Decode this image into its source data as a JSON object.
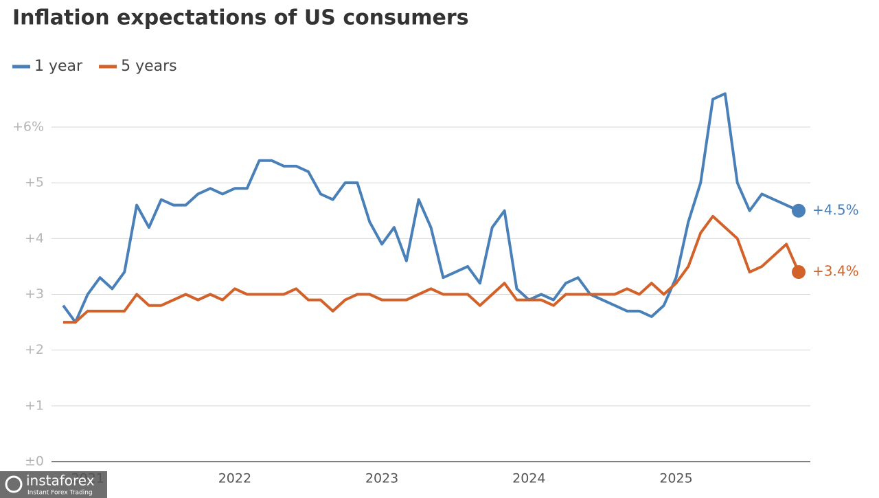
{
  "chart_data": {
    "type": "line",
    "title": "Inflation expectations of US consumers",
    "categories": [
      null,
      null,
      "2021",
      null,
      null,
      null,
      null,
      null,
      null,
      null,
      null,
      null,
      null,
      null,
      "2022",
      null,
      null,
      null,
      null,
      null,
      null,
      null,
      null,
      null,
      null,
      null,
      "2023",
      null,
      null,
      null,
      null,
      null,
      null,
      null,
      null,
      null,
      null,
      null,
      "2024",
      null,
      null,
      null,
      null,
      null,
      null,
      null,
      null,
      null,
      null,
      null,
      "2025",
      null,
      null,
      null,
      null,
      null,
      null,
      null,
      null,
      null,
      null
    ],
    "series": [
      {
        "name": "1 year",
        "color": "#4a80b8",
        "values": [
          2.8,
          2.5,
          3.0,
          3.3,
          3.1,
          3.4,
          4.6,
          4.2,
          4.7,
          4.6,
          4.6,
          4.8,
          4.9,
          4.8,
          4.9,
          4.9,
          5.4,
          5.4,
          5.3,
          5.3,
          5.2,
          4.8,
          4.7,
          5.0,
          5.0,
          4.3,
          3.9,
          4.2,
          3.6,
          4.7,
          4.2,
          3.3,
          3.4,
          3.5,
          3.2,
          4.2,
          4.5,
          3.1,
          2.9,
          3.0,
          2.9,
          3.2,
          3.3,
          3.0,
          2.9,
          2.8,
          2.7,
          2.7,
          2.6,
          2.8,
          3.3,
          4.3,
          5.0,
          6.5,
          6.6,
          5.0,
          4.5,
          4.8,
          4.7,
          4.6,
          4.5
        ],
        "value_labels": [
          null,
          null,
          null,
          null,
          null,
          null,
          null,
          null,
          null,
          null,
          null,
          null,
          null,
          null,
          null,
          null,
          null,
          null,
          null,
          null,
          null,
          null,
          null,
          null,
          null,
          null,
          null,
          null,
          null,
          null,
          null,
          null,
          null,
          null,
          null,
          null,
          null,
          null,
          null,
          null,
          null,
          null,
          null,
          null,
          null,
          null,
          null,
          null,
          null,
          null,
          null,
          null,
          null,
          null,
          null,
          null,
          null,
          null,
          null,
          null,
          "+4.5%"
        ]
      },
      {
        "name": "5 years",
        "color": "#d2622a",
        "values": [
          2.5,
          2.5,
          2.7,
          2.7,
          2.7,
          2.7,
          3.0,
          2.8,
          2.8,
          2.9,
          3.0,
          2.9,
          3.0,
          2.9,
          3.1,
          3.0,
          3.0,
          3.0,
          3.0,
          3.1,
          2.9,
          2.9,
          2.7,
          2.9,
          3.0,
          3.0,
          2.9,
          2.9,
          2.9,
          3.0,
          3.1,
          3.0,
          3.0,
          3.0,
          2.8,
          3.0,
          3.2,
          2.9,
          2.9,
          2.9,
          2.8,
          3.0,
          3.0,
          3.0,
          3.0,
          3.0,
          3.1,
          3.0,
          3.2,
          3.0,
          3.2,
          3.5,
          4.1,
          4.4,
          4.2,
          4.0,
          3.4,
          3.5,
          3.7,
          3.9,
          3.4
        ],
        "value_labels": [
          null,
          null,
          null,
          null,
          null,
          null,
          null,
          null,
          null,
          null,
          null,
          null,
          null,
          null,
          null,
          null,
          null,
          null,
          null,
          null,
          null,
          null,
          null,
          null,
          null,
          null,
          null,
          null,
          null,
          null,
          null,
          null,
          null,
          null,
          null,
          null,
          null,
          null,
          null,
          null,
          null,
          null,
          null,
          null,
          null,
          null,
          null,
          null,
          null,
          null,
          null,
          null,
          null,
          null,
          null,
          null,
          null,
          null,
          null,
          null,
          "+3.4%"
        ]
      }
    ],
    "ylim": [
      0,
      6
    ],
    "yticks": [
      {
        "value": 0,
        "label": "±0"
      },
      {
        "value": 1,
        "label": "+1"
      },
      {
        "value": 2,
        "label": "+2"
      },
      {
        "value": 3,
        "label": "+3"
      },
      {
        "value": 4,
        "label": "+4"
      },
      {
        "value": 5,
        "label": "+5"
      },
      {
        "value": 6,
        "label": "+6%"
      }
    ],
    "grid": true,
    "legend": "top-left"
  },
  "watermark": {
    "brand": "instaforex",
    "tagline": "Instant Forex Trading"
  }
}
